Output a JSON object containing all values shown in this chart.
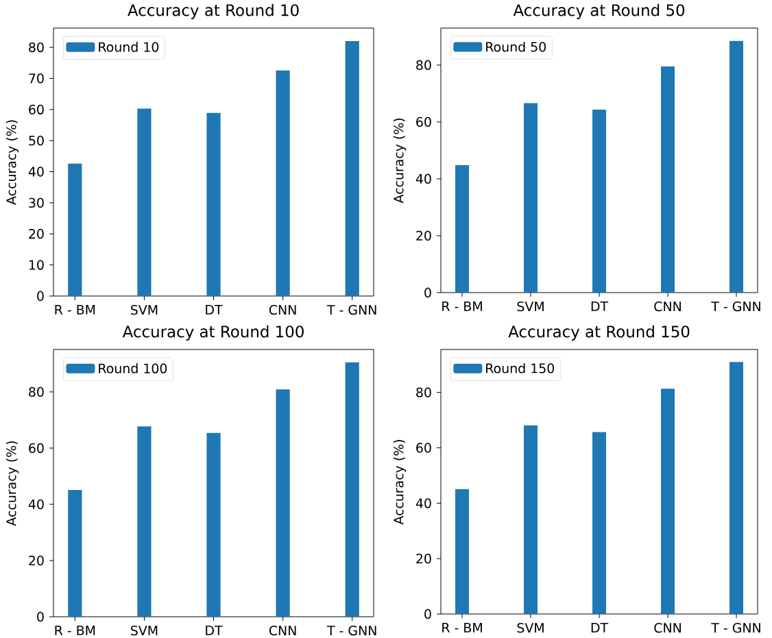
{
  "chart_data": [
    {
      "type": "bar",
      "title": "Accuracy at Round 10",
      "ylabel": "Accuracy (%)",
      "categories": [
        "R - BM",
        "SVM",
        "DT",
        "CNN",
        "T - GNN"
      ],
      "series": [
        {
          "name": "Round 10",
          "color": "#1f77b4",
          "values": [
            42.6,
            60.3,
            58.9,
            72.6,
            82.0
          ]
        }
      ],
      "ylim": [
        0,
        86.2
      ],
      "yticks": [
        0,
        10,
        20,
        30,
        40,
        50,
        60,
        70,
        80
      ],
      "legend": "top left"
    },
    {
      "type": "bar",
      "title": "Accuracy at Round 50",
      "ylabel": "Accuracy (%)",
      "categories": [
        "R - BM",
        "SVM",
        "DT",
        "CNN",
        "T - GNN"
      ],
      "series": [
        {
          "name": "Round 50",
          "color": "#1f77b4",
          "values": [
            44.8,
            66.6,
            64.3,
            79.5,
            88.5
          ]
        }
      ],
      "ylim": [
        0,
        93.0
      ],
      "yticks": [
        0,
        20,
        40,
        60,
        80
      ],
      "legend": "top left"
    },
    {
      "type": "bar",
      "title": "Accuracy at Round 100",
      "ylabel": "Accuracy (%)",
      "categories": [
        "R - BM",
        "SVM",
        "DT",
        "CNN",
        "T - GNN"
      ],
      "series": [
        {
          "name": "Round 100",
          "color": "#1f77b4",
          "values": [
            45.1,
            67.7,
            65.4,
            80.9,
            90.5
          ]
        }
      ],
      "ylim": [
        0,
        95.1
      ],
      "yticks": [
        0,
        20,
        40,
        60,
        80
      ],
      "legend": "top left"
    },
    {
      "type": "bar",
      "title": "Accuracy at Round 150",
      "ylabel": "Accuracy (%)",
      "categories": [
        "R - BM",
        "SVM",
        "DT",
        "CNN",
        "T - GNN"
      ],
      "series": [
        {
          "name": "Round 150",
          "color": "#1f77b4",
          "values": [
            45.1,
            68.1,
            65.7,
            81.3,
            91.0
          ]
        }
      ],
      "ylim": [
        0,
        95.5
      ],
      "yticks": [
        0,
        20,
        40,
        60,
        80
      ],
      "legend": "top left"
    }
  ]
}
